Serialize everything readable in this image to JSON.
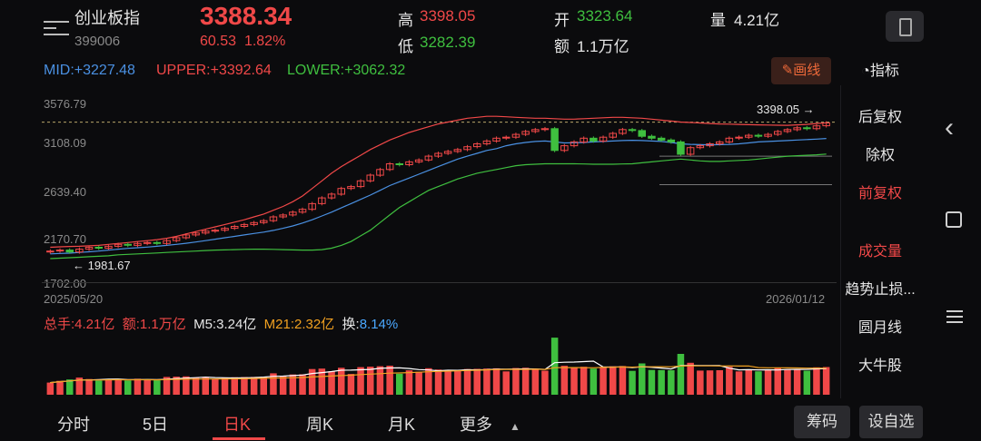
{
  "header": {
    "name": "创业板指",
    "code": "399006",
    "price": "3388.34",
    "change": "60.53",
    "change_pct": "1.82%",
    "high_label": "高",
    "high": "3398.05",
    "low_label": "低",
    "low": "3282.39",
    "open_label": "开",
    "open": "3323.64",
    "amount_label": "额",
    "amount": "1.1万亿",
    "volume_label": "量",
    "volume": "4.21亿"
  },
  "indicators": {
    "mid": "MID:+3227.48",
    "upper": "UPPER:+3392.64",
    "lower": "LOWER:+3062.32",
    "draw_button": "画线",
    "draw_icon": "pencil-icon"
  },
  "right_menu": {
    "indicator": "指标",
    "items": [
      "后复权",
      "除权",
      "前复权",
      "成交量",
      "趋势止损...",
      "圆月线",
      "大牛股"
    ],
    "active": "前复权"
  },
  "volume_panel": {
    "total": "总手:4.21亿",
    "amount": "额:1.1万亿",
    "m5": "M5:3.24亿",
    "m21": "M21:2.32亿",
    "turnover_label": "换:",
    "turnover": "8.14%"
  },
  "tabs": [
    "分时",
    "5日",
    "日K",
    "周K",
    "月K",
    "更多"
  ],
  "active_tab": "日K",
  "buttons": {
    "chips": "筹码",
    "custom": "设自选"
  },
  "colors": {
    "up": "#f04848",
    "down": "#3fbf3f",
    "mid": "#4a90e2",
    "upper": "#f04848",
    "lower": "#3fbf3f",
    "background": "#0b0b0d"
  },
  "chart_data": {
    "type": "candlestick",
    "y_ticks": [
      "3576.79",
      "3108.09",
      "2639.40",
      "2170.70",
      "1702.00"
    ],
    "ylim": [
      1702.0,
      3576.79
    ],
    "x_start": "2025/05/20",
    "x_end": "2026/01/12",
    "max_marker": "3398.05",
    "min_marker": "1981.67",
    "ref_levels": [
      3398.05,
      3040,
      2740
    ],
    "close": [
      2040,
      2050,
      2030,
      2060,
      2080,
      2070,
      2090,
      2110,
      2100,
      2120,
      2130,
      2120,
      2150,
      2180,
      2210,
      2230,
      2250,
      2260,
      2280,
      2300,
      2320,
      2340,
      2360,
      2400,
      2420,
      2450,
      2480,
      2540,
      2600,
      2640,
      2700,
      2720,
      2780,
      2840,
      2900,
      2960,
      2950,
      2980,
      3000,
      3040,
      3070,
      3090,
      3110,
      3140,
      3170,
      3200,
      3230,
      3240,
      3270,
      3300,
      3320,
      3330,
      3100,
      3150,
      3190,
      3230,
      3200,
      3240,
      3280,
      3320,
      3310,
      3250,
      3230,
      3210,
      3190,
      3060,
      3130,
      3150,
      3170,
      3190,
      3230,
      3240,
      3260,
      3250,
      3270,
      3300,
      3320,
      3340,
      3330,
      3360,
      3390
    ],
    "mid": [
      2010,
      2015,
      2018,
      2025,
      2032,
      2040,
      2050,
      2060,
      2068,
      2075,
      2082,
      2090,
      2100,
      2110,
      2122,
      2135,
      2150,
      2165,
      2180,
      2195,
      2210,
      2225,
      2240,
      2258,
      2280,
      2305,
      2335,
      2370,
      2410,
      2450,
      2495,
      2540,
      2585,
      2630,
      2680,
      2730,
      2770,
      2810,
      2850,
      2890,
      2930,
      2970,
      3010,
      3040,
      3070,
      3100,
      3120,
      3150,
      3170,
      3185,
      3195,
      3200,
      3190,
      3180,
      3182,
      3185,
      3190,
      3195,
      3200,
      3205,
      3208,
      3205,
      3200,
      3195,
      3185,
      3170,
      3165,
      3162,
      3160,
      3162,
      3165,
      3170,
      3180,
      3190,
      3195,
      3200,
      3205,
      3210,
      3215,
      3220,
      3227
    ],
    "upper": [
      2080,
      2085,
      2088,
      2090,
      2095,
      2100,
      2110,
      2120,
      2130,
      2140,
      2150,
      2160,
      2175,
      2195,
      2220,
      2245,
      2270,
      2295,
      2320,
      2345,
      2370,
      2400,
      2430,
      2470,
      2510,
      2560,
      2620,
      2700,
      2780,
      2860,
      2930,
      2990,
      3050,
      3110,
      3160,
      3210,
      3250,
      3290,
      3320,
      3350,
      3380,
      3400,
      3420,
      3440,
      3450,
      3460,
      3460,
      3455,
      3450,
      3445,
      3440,
      3440,
      3435,
      3430,
      3430,
      3435,
      3440,
      3445,
      3450,
      3450,
      3445,
      3440,
      3430,
      3420,
      3410,
      3400,
      3395,
      3390,
      3385,
      3380,
      3378,
      3375,
      3372,
      3370,
      3368,
      3366,
      3365,
      3370,
      3375,
      3385,
      3392
    ],
    "lower": [
      1960,
      1965,
      1970,
      1975,
      1980,
      1985,
      1990,
      2000,
      2005,
      2010,
      2015,
      2020,
      2025,
      2030,
      2035,
      2040,
      2045,
      2050,
      2052,
      2055,
      2058,
      2060,
      2060,
      2058,
      2055,
      2052,
      2050,
      2050,
      2055,
      2070,
      2100,
      2140,
      2200,
      2260,
      2340,
      2420,
      2500,
      2560,
      2620,
      2680,
      2720,
      2760,
      2800,
      2830,
      2860,
      2880,
      2900,
      2920,
      2940,
      2950,
      2955,
      2960,
      2960,
      2960,
      2960,
      2958,
      2955,
      2955,
      2955,
      2958,
      2960,
      2970,
      2980,
      2990,
      3000,
      3010,
      3000,
      2990,
      2985,
      2985,
      2990,
      2995,
      3000,
      3010,
      3020,
      3030,
      3040,
      3045,
      3050,
      3055,
      3062
    ],
    "volume_ma_labels": [
      "M5",
      "M21"
    ]
  }
}
